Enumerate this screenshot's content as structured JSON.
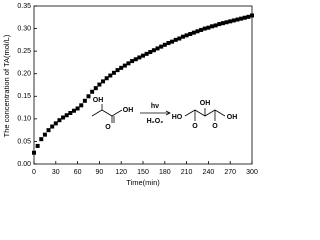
{
  "chart_data": {
    "type": "scatter",
    "x_label": "Time(min)",
    "y_label": "The concentration of TA(mol/L)",
    "x": [
      0,
      5,
      10,
      15,
      20,
      25,
      30,
      35,
      40,
      45,
      50,
      55,
      60,
      65,
      70,
      75,
      80,
      85,
      90,
      95,
      100,
      105,
      110,
      115,
      120,
      125,
      130,
      135,
      140,
      145,
      150,
      155,
      160,
      165,
      170,
      175,
      180,
      185,
      190,
      195,
      200,
      205,
      210,
      215,
      220,
      225,
      230,
      235,
      240,
      245,
      250,
      255,
      260,
      265,
      270,
      275,
      280,
      285,
      290,
      295,
      300
    ],
    "values": [
      0.025,
      0.04,
      0.055,
      0.065,
      0.075,
      0.083,
      0.09,
      0.097,
      0.103,
      0.108,
      0.113,
      0.118,
      0.123,
      0.13,
      0.14,
      0.15,
      0.16,
      0.168,
      0.176,
      0.183,
      0.19,
      0.196,
      0.202,
      0.208,
      0.213,
      0.218,
      0.223,
      0.228,
      0.232,
      0.236,
      0.24,
      0.244,
      0.248,
      0.252,
      0.256,
      0.26,
      0.264,
      0.268,
      0.271,
      0.275,
      0.278,
      0.282,
      0.285,
      0.288,
      0.291,
      0.294,
      0.297,
      0.3,
      0.302,
      0.305,
      0.307,
      0.31,
      0.312,
      0.314,
      0.316,
      0.318,
      0.32,
      0.322,
      0.324,
      0.326,
      0.329
    ],
    "color": "#000000",
    "xlim": [
      0,
      300
    ],
    "xticks": [
      0,
      30,
      60,
      90,
      120,
      150,
      180,
      210,
      240,
      270,
      300
    ],
    "ylim": [
      0,
      0.35
    ],
    "yticks": [
      {
        "value": 0,
        "label": "0.00"
      },
      {
        "value": 0.05,
        "label": "0.05"
      },
      {
        "value": 0.1,
        "label": "0.10"
      },
      {
        "value": 0.15,
        "label": "0.15"
      },
      {
        "value": 0.2,
        "label": "0.20"
      },
      {
        "value": 0.25,
        "label": "0.25"
      },
      {
        "value": 0.3,
        "label": "0.30"
      },
      {
        "value": 0.35,
        "label": "0.35"
      }
    ],
    "grid": false,
    "annotations": [
      "OH",
      "OH",
      "O",
      "hν",
      "H₂O₂",
      "HO",
      "OH",
      "OH",
      "O",
      "O"
    ]
  }
}
